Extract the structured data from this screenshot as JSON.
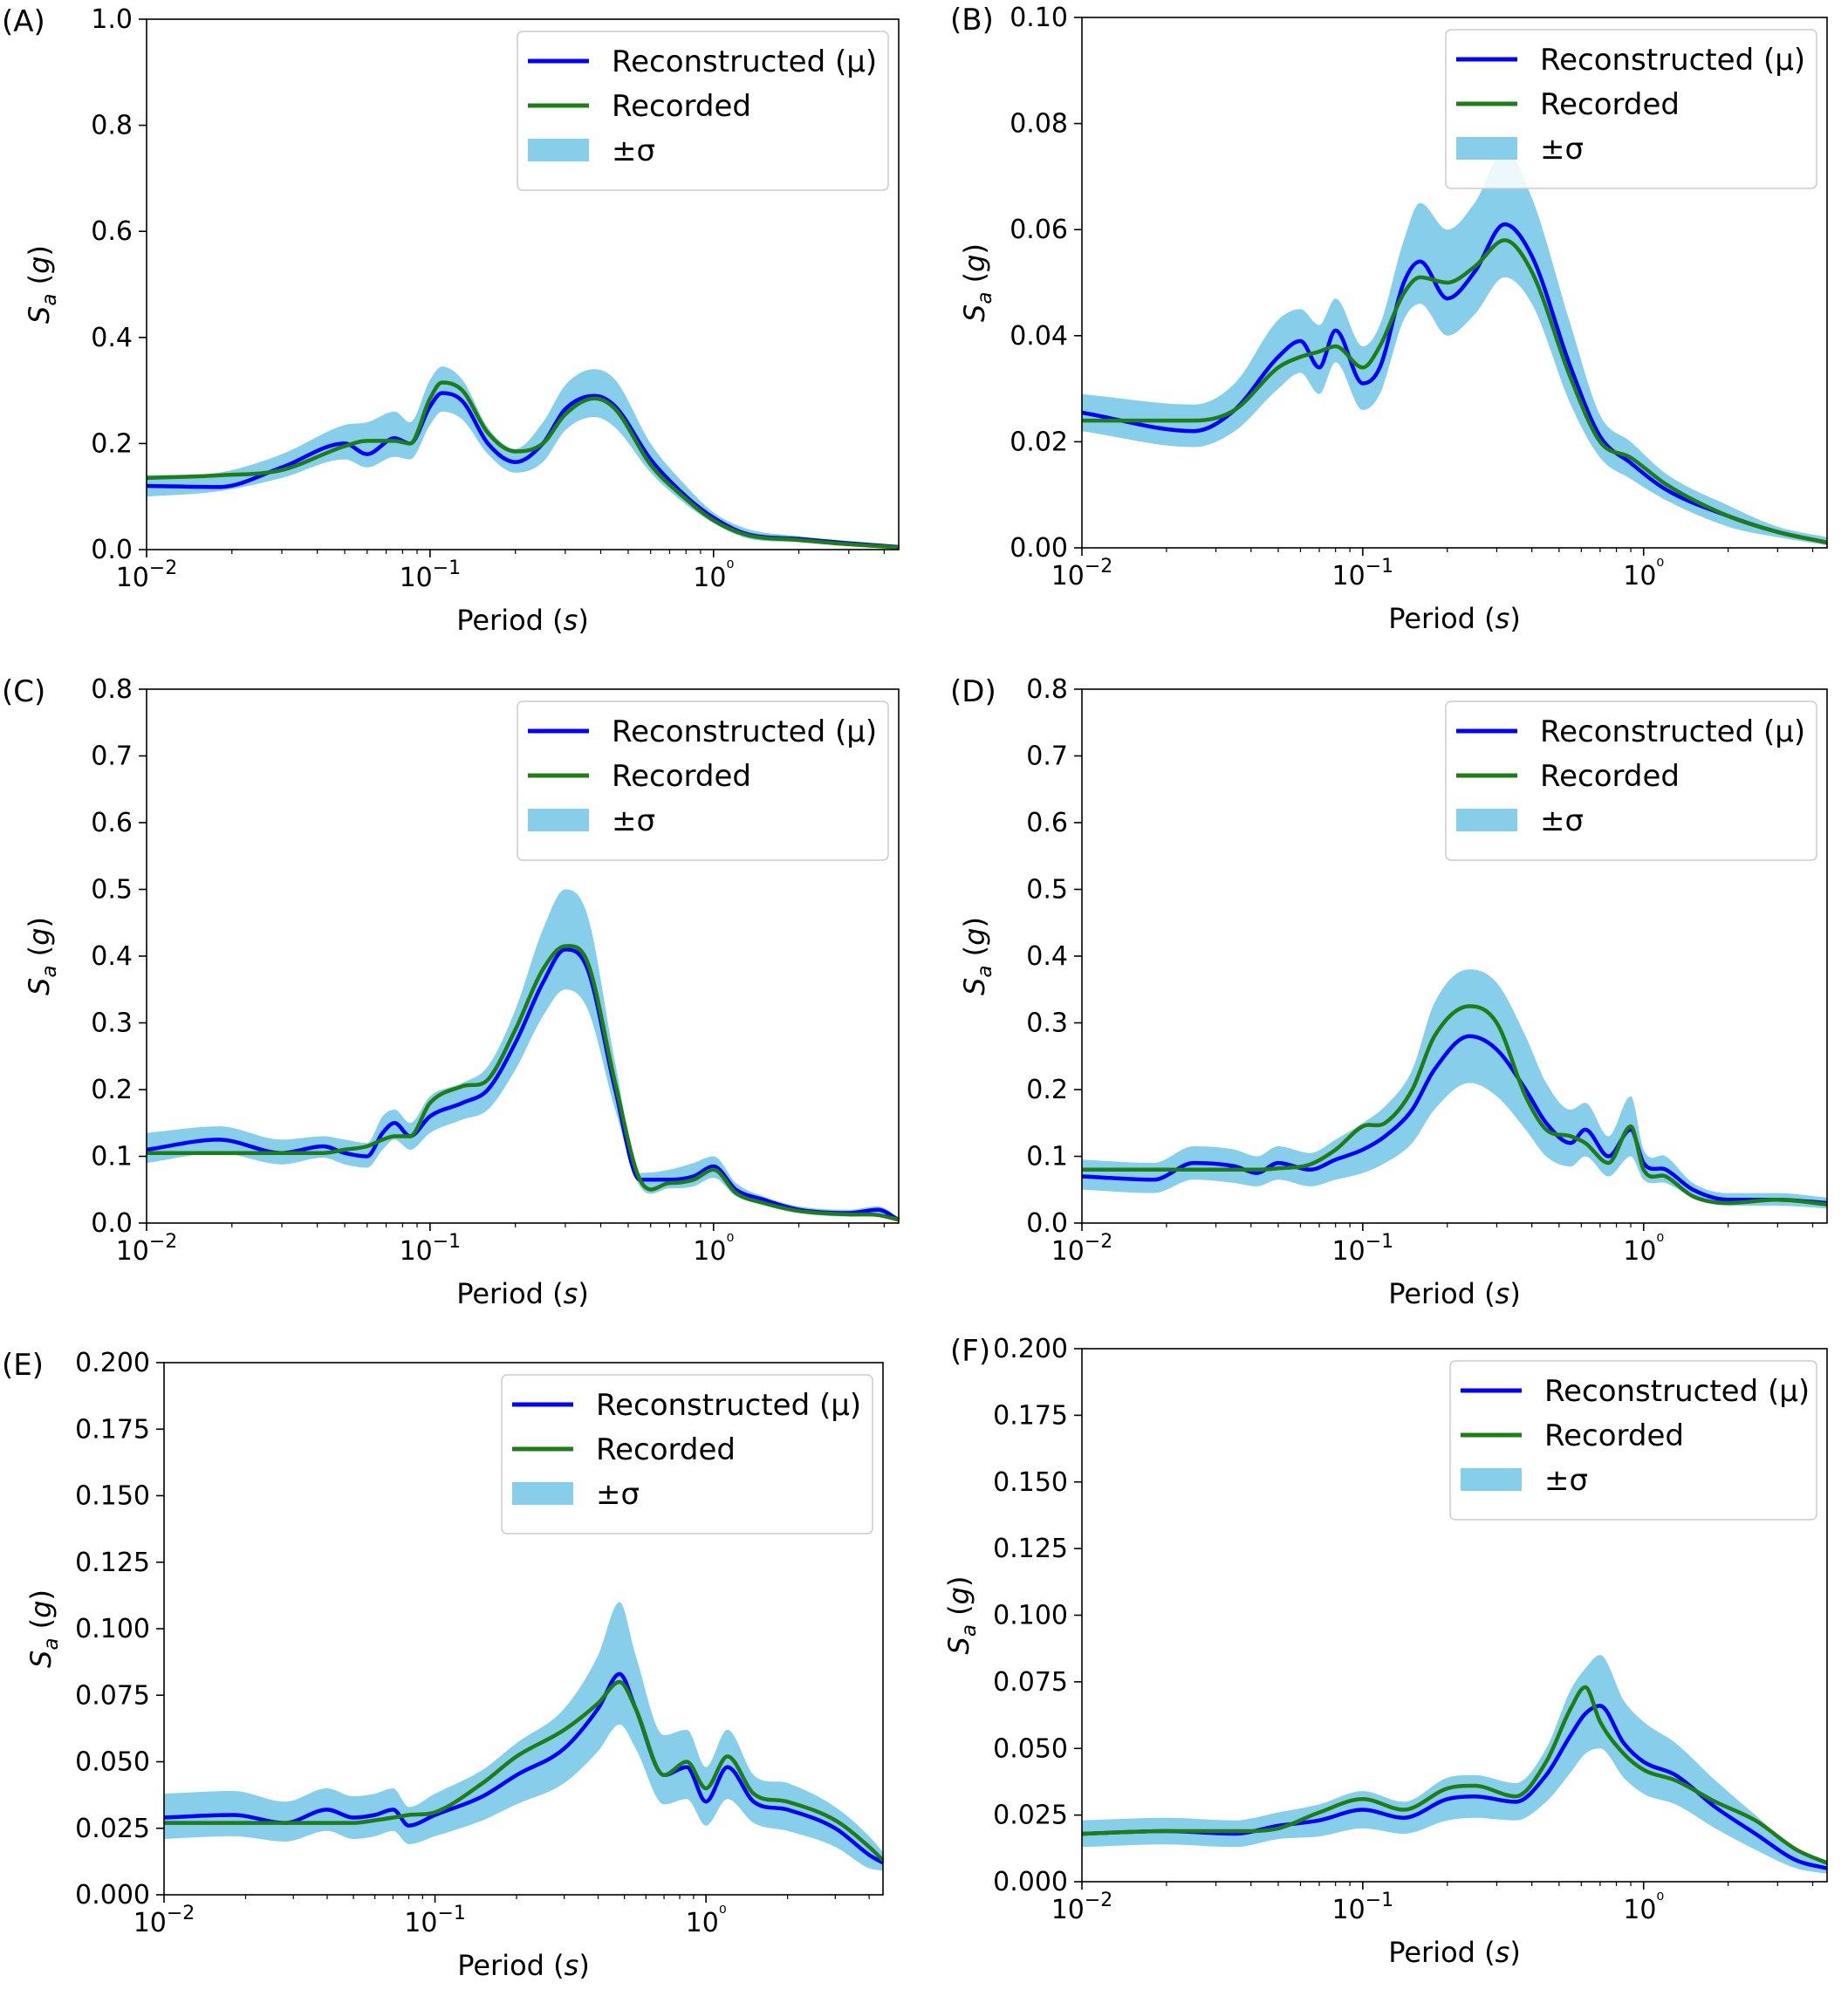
{
  "colors": {
    "reconstructed": "#0000ff",
    "recorded": "#1e7d14",
    "band": "#87ceeb"
  },
  "chart_data": [
    {
      "type": "line",
      "panel_label": "(A)",
      "xlabel": "Period",
      "xlabel_unit": "s",
      "ylabel": "S",
      "ylabel_sub": "a",
      "ylabel_unit": "g",
      "x_scale": "log",
      "xlim": [
        0.01,
        4.5
      ],
      "x_ticks": [
        {
          "value": 0.01,
          "label": "10−2"
        },
        {
          "value": 0.1,
          "label": "10−1"
        },
        {
          "value": 1,
          "label": "10⁰"
        }
      ],
      "ylim": [
        0,
        1.0
      ],
      "y_ticks": [
        "0.0",
        "0.2",
        "0.4",
        "0.6",
        "0.8",
        "1.0"
      ],
      "grid": false,
      "legend": {
        "placement": "top-right",
        "entries": [
          "Reconstructed (μ)",
          "Recorded",
          "±σ"
        ]
      },
      "x": [
        0.01,
        0.018,
        0.03,
        0.05,
        0.06,
        0.075,
        0.085,
        0.1,
        0.11,
        0.13,
        0.16,
        0.2,
        0.25,
        0.3,
        0.38,
        0.45,
        0.6,
        0.8,
        1.0,
        1.3,
        2.0,
        3.0,
        4.5
      ],
      "series": [
        {
          "name": "Reconstructed (μ)",
          "values": [
            0.12,
            0.118,
            0.155,
            0.2,
            0.18,
            0.21,
            0.2,
            0.27,
            0.295,
            0.28,
            0.2,
            0.165,
            0.2,
            0.265,
            0.29,
            0.27,
            0.17,
            0.1,
            0.06,
            0.03,
            0.02,
            0.012,
            0.005
          ]
        },
        {
          "name": "Recorded",
          "values": [
            0.135,
            0.14,
            0.15,
            0.195,
            0.205,
            0.205,
            0.2,
            0.285,
            0.315,
            0.3,
            0.22,
            0.185,
            0.2,
            0.255,
            0.285,
            0.265,
            0.16,
            0.095,
            0.055,
            0.028,
            0.018,
            0.01,
            0.004
          ]
        }
      ],
      "band": {
        "name": "±σ",
        "upper": [
          0.14,
          0.145,
          0.18,
          0.235,
          0.24,
          0.26,
          0.24,
          0.32,
          0.345,
          0.32,
          0.23,
          0.19,
          0.24,
          0.31,
          0.34,
          0.32,
          0.2,
          0.12,
          0.07,
          0.04,
          0.025,
          0.016,
          0.008
        ],
        "lower": [
          0.1,
          0.11,
          0.135,
          0.17,
          0.155,
          0.175,
          0.17,
          0.235,
          0.26,
          0.245,
          0.18,
          0.145,
          0.165,
          0.225,
          0.25,
          0.23,
          0.145,
          0.085,
          0.05,
          0.022,
          0.014,
          0.008,
          0.002
        ]
      }
    },
    {
      "type": "line",
      "panel_label": "(B)",
      "xlabel": "Period",
      "xlabel_unit": "s",
      "ylabel": "S",
      "ylabel_sub": "a",
      "ylabel_unit": "g",
      "x_scale": "log",
      "xlim": [
        0.01,
        4.5
      ],
      "x_ticks": [
        {
          "value": 0.01,
          "label": "10−2"
        },
        {
          "value": 0.1,
          "label": "10−1"
        },
        {
          "value": 1,
          "label": "10⁰"
        }
      ],
      "ylim": [
        0,
        0.1
      ],
      "y_ticks": [
        "0.00",
        "0.02",
        "0.04",
        "0.06",
        "0.08",
        "0.10"
      ],
      "grid": false,
      "legend": {
        "placement": "top-right",
        "entries": [
          "Reconstructed (μ)",
          "Recorded",
          "±σ"
        ]
      },
      "x": [
        0.01,
        0.025,
        0.035,
        0.05,
        0.06,
        0.07,
        0.08,
        0.1,
        0.115,
        0.14,
        0.16,
        0.2,
        0.25,
        0.32,
        0.4,
        0.55,
        0.7,
        0.9,
        1.2,
        2.0,
        3.0,
        4.5
      ],
      "series": [
        {
          "name": "Reconstructed (μ)",
          "values": [
            0.0255,
            0.022,
            0.026,
            0.036,
            0.039,
            0.034,
            0.041,
            0.031,
            0.034,
            0.05,
            0.054,
            0.047,
            0.052,
            0.061,
            0.055,
            0.034,
            0.021,
            0.016,
            0.011,
            0.006,
            0.003,
            0.001
          ]
        },
        {
          "name": "Recorded",
          "values": [
            0.024,
            0.024,
            0.026,
            0.034,
            0.036,
            0.037,
            0.038,
            0.034,
            0.038,
            0.048,
            0.051,
            0.05,
            0.053,
            0.058,
            0.052,
            0.032,
            0.02,
            0.017,
            0.012,
            0.006,
            0.003,
            0.001
          ]
        }
      ],
      "band": {
        "name": "±σ",
        "upper": [
          0.029,
          0.027,
          0.031,
          0.043,
          0.045,
          0.042,
          0.047,
          0.038,
          0.042,
          0.058,
          0.065,
          0.06,
          0.065,
          0.075,
          0.066,
          0.042,
          0.025,
          0.02,
          0.014,
          0.008,
          0.004,
          0.002
        ]
      },
      "band_lower": [
        0.022,
        0.019,
        0.022,
        0.03,
        0.033,
        0.029,
        0.035,
        0.026,
        0.029,
        0.043,
        0.046,
        0.04,
        0.044,
        0.051,
        0.046,
        0.027,
        0.017,
        0.013,
        0.009,
        0.004,
        0.002,
        0.0005
      ]
    },
    {
      "type": "line",
      "panel_label": "(C)",
      "xlabel": "Period",
      "xlabel_unit": "s",
      "ylabel": "S",
      "ylabel_sub": "a",
      "ylabel_unit": "g",
      "x_scale": "log",
      "xlim": [
        0.01,
        4.5
      ],
      "x_ticks": [
        {
          "value": 0.01,
          "label": "10−2"
        },
        {
          "value": 0.1,
          "label": "10−1"
        },
        {
          "value": 1,
          "label": "10⁰"
        }
      ],
      "ylim": [
        0,
        0.8
      ],
      "y_ticks": [
        "0.0",
        "0.1",
        "0.2",
        "0.3",
        "0.4",
        "0.5",
        "0.6",
        "0.7",
        "0.8"
      ],
      "grid": false,
      "legend": {
        "placement": "top-right",
        "entries": [
          "Reconstructed (μ)",
          "Recorded",
          "±σ"
        ]
      },
      "x": [
        0.01,
        0.018,
        0.03,
        0.042,
        0.05,
        0.06,
        0.068,
        0.075,
        0.085,
        0.1,
        0.13,
        0.16,
        0.2,
        0.25,
        0.3,
        0.36,
        0.45,
        0.55,
        0.7,
        0.85,
        1.0,
        1.2,
        1.5,
        2.0,
        3.0,
        3.8,
        4.5
      ],
      "series": [
        {
          "name": "Reconstructed (μ)",
          "values": [
            0.11,
            0.125,
            0.105,
            0.115,
            0.105,
            0.1,
            0.135,
            0.15,
            0.13,
            0.16,
            0.18,
            0.2,
            0.27,
            0.36,
            0.41,
            0.38,
            0.2,
            0.065,
            0.065,
            0.07,
            0.085,
            0.05,
            0.035,
            0.02,
            0.015,
            0.02,
            0.005
          ]
        },
        {
          "name": "Recorded",
          "values": [
            0.105,
            0.105,
            0.105,
            0.105,
            0.11,
            0.115,
            0.125,
            0.13,
            0.13,
            0.18,
            0.205,
            0.215,
            0.29,
            0.38,
            0.415,
            0.39,
            0.21,
            0.065,
            0.06,
            0.065,
            0.08,
            0.045,
            0.03,
            0.018,
            0.013,
            0.012,
            0.005
          ]
        }
      ],
      "band": {
        "name": "±σ",
        "upper": [
          0.135,
          0.145,
          0.125,
          0.13,
          0.125,
          0.12,
          0.16,
          0.17,
          0.15,
          0.19,
          0.21,
          0.235,
          0.32,
          0.44,
          0.5,
          0.46,
          0.24,
          0.075,
          0.08,
          0.09,
          0.1,
          0.06,
          0.04,
          0.025,
          0.02,
          0.025,
          0.008
        ]
      },
      "band_lower": [
        0.09,
        0.105,
        0.088,
        0.098,
        0.088,
        0.083,
        0.11,
        0.125,
        0.11,
        0.135,
        0.155,
        0.17,
        0.23,
        0.31,
        0.35,
        0.32,
        0.17,
        0.055,
        0.052,
        0.055,
        0.068,
        0.04,
        0.028,
        0.015,
        0.01,
        0.014,
        0.002
      ]
    },
    {
      "type": "line",
      "panel_label": "(D)",
      "xlabel": "Period",
      "xlabel_unit": "s",
      "ylabel": "S",
      "ylabel_sub": "a",
      "ylabel_unit": "g",
      "x_scale": "log",
      "xlim": [
        0.01,
        4.5
      ],
      "x_ticks": [
        {
          "value": 0.01,
          "label": "10−2"
        },
        {
          "value": 0.1,
          "label": "10−1"
        },
        {
          "value": 1,
          "label": "10⁰"
        }
      ],
      "ylim": [
        0,
        0.8
      ],
      "y_ticks": [
        "0.0",
        "0.1",
        "0.2",
        "0.3",
        "0.4",
        "0.5",
        "0.6",
        "0.7",
        "0.8"
      ],
      "grid": false,
      "legend": {
        "placement": "top-right",
        "entries": [
          "Reconstructed (μ)",
          "Recorded",
          "±σ"
        ]
      },
      "x": [
        0.01,
        0.018,
        0.025,
        0.035,
        0.042,
        0.05,
        0.065,
        0.08,
        0.1,
        0.12,
        0.15,
        0.18,
        0.24,
        0.3,
        0.38,
        0.45,
        0.55,
        0.62,
        0.75,
        0.9,
        1.0,
        1.2,
        1.5,
        2.0,
        3.0,
        4.5
      ],
      "series": [
        {
          "name": "Reconstructed (μ)",
          "values": [
            0.07,
            0.065,
            0.09,
            0.085,
            0.075,
            0.09,
            0.08,
            0.095,
            0.11,
            0.13,
            0.17,
            0.23,
            0.28,
            0.26,
            0.2,
            0.15,
            0.12,
            0.14,
            0.1,
            0.14,
            0.09,
            0.08,
            0.05,
            0.035,
            0.035,
            0.03
          ]
        },
        {
          "name": "Recorded",
          "values": [
            0.08,
            0.08,
            0.08,
            0.08,
            0.08,
            0.082,
            0.088,
            0.11,
            0.145,
            0.15,
            0.2,
            0.28,
            0.325,
            0.3,
            0.19,
            0.14,
            0.13,
            0.12,
            0.09,
            0.145,
            0.08,
            0.07,
            0.04,
            0.03,
            0.035,
            0.028
          ]
        }
      ],
      "band": {
        "name": "±σ",
        "upper": [
          0.095,
          0.09,
          0.115,
          0.11,
          0.1,
          0.115,
          0.105,
          0.125,
          0.15,
          0.175,
          0.23,
          0.33,
          0.38,
          0.36,
          0.28,
          0.21,
          0.17,
          0.18,
          0.13,
          0.19,
          0.11,
          0.1,
          0.06,
          0.045,
          0.045,
          0.038
        ]
      },
      "band_lower": [
        0.05,
        0.045,
        0.065,
        0.06,
        0.055,
        0.065,
        0.055,
        0.065,
        0.075,
        0.09,
        0.12,
        0.17,
        0.21,
        0.19,
        0.14,
        0.1,
        0.085,
        0.1,
        0.07,
        0.1,
        0.065,
        0.06,
        0.038,
        0.026,
        0.026,
        0.022
      ]
    },
    {
      "type": "line",
      "panel_label": "(E)",
      "xlabel": "Period",
      "xlabel_unit": "s",
      "ylabel": "S",
      "ylabel_sub": "a",
      "ylabel_unit": "g",
      "x_scale": "log",
      "xlim": [
        0.01,
        4.5
      ],
      "x_ticks": [
        {
          "value": 0.01,
          "label": "10−2"
        },
        {
          "value": 0.1,
          "label": "10−1"
        },
        {
          "value": 1,
          "label": "10⁰"
        }
      ],
      "ylim": [
        0,
        0.2
      ],
      "y_ticks": [
        "0.000",
        "0.025",
        "0.050",
        "0.075",
        "0.100",
        "0.125",
        "0.150",
        "0.175",
        "0.200"
      ],
      "grid": false,
      "legend": {
        "placement": "top-right",
        "entries": [
          "Reconstructed (μ)",
          "Recorded",
          "±σ"
        ]
      },
      "x": [
        0.01,
        0.018,
        0.028,
        0.04,
        0.05,
        0.06,
        0.07,
        0.08,
        0.1,
        0.15,
        0.2,
        0.3,
        0.4,
        0.48,
        0.55,
        0.7,
        0.85,
        1.0,
        1.2,
        1.5,
        2.0,
        3.0,
        4.0,
        4.5
      ],
      "series": [
        {
          "name": "Reconstructed (μ)",
          "values": [
            0.029,
            0.03,
            0.027,
            0.032,
            0.029,
            0.03,
            0.032,
            0.026,
            0.03,
            0.037,
            0.045,
            0.055,
            0.07,
            0.083,
            0.07,
            0.045,
            0.048,
            0.035,
            0.048,
            0.035,
            0.032,
            0.025,
            0.015,
            0.012
          ]
        },
        {
          "name": "Recorded",
          "values": [
            0.027,
            0.027,
            0.027,
            0.027,
            0.027,
            0.028,
            0.029,
            0.03,
            0.031,
            0.042,
            0.052,
            0.062,
            0.072,
            0.08,
            0.07,
            0.045,
            0.05,
            0.04,
            0.052,
            0.038,
            0.035,
            0.028,
            0.018,
            0.013
          ]
        }
      ],
      "band": {
        "name": "±σ",
        "upper": [
          0.038,
          0.039,
          0.035,
          0.04,
          0.037,
          0.038,
          0.04,
          0.033,
          0.038,
          0.047,
          0.057,
          0.07,
          0.09,
          0.11,
          0.09,
          0.06,
          0.062,
          0.048,
          0.062,
          0.045,
          0.042,
          0.033,
          0.022,
          0.016
        ]
      },
      "band_lower": [
        0.021,
        0.022,
        0.02,
        0.024,
        0.021,
        0.022,
        0.024,
        0.019,
        0.022,
        0.028,
        0.034,
        0.042,
        0.054,
        0.064,
        0.055,
        0.034,
        0.036,
        0.026,
        0.036,
        0.027,
        0.024,
        0.018,
        0.01,
        0.009
      ]
    },
    {
      "type": "line",
      "panel_label": "(F)",
      "xlabel": "Period",
      "xlabel_unit": "s",
      "ylabel": "S",
      "ylabel_sub": "a",
      "ylabel_unit": "g",
      "x_scale": "log",
      "xlim": [
        0.01,
        4.5
      ],
      "x_ticks": [
        {
          "value": 0.01,
          "label": "10−2"
        },
        {
          "value": 0.1,
          "label": "10−1"
        },
        {
          "value": 1,
          "label": "10⁰"
        }
      ],
      "ylim": [
        0,
        0.2
      ],
      "y_ticks": [
        "0.000",
        "0.025",
        "0.050",
        "0.075",
        "0.100",
        "0.125",
        "0.150",
        "0.175",
        "0.200"
      ],
      "grid": false,
      "legend": {
        "placement": "top-right",
        "entries": [
          "Reconstructed (μ)",
          "Recorded",
          "±σ"
        ]
      },
      "x": [
        0.01,
        0.02,
        0.035,
        0.05,
        0.07,
        0.1,
        0.14,
        0.2,
        0.25,
        0.35,
        0.45,
        0.55,
        0.62,
        0.7,
        0.85,
        1.0,
        1.3,
        1.8,
        2.5,
        3.5,
        4.5
      ],
      "series": [
        {
          "name": "Reconstructed (μ)",
          "values": [
            0.018,
            0.019,
            0.018,
            0.021,
            0.023,
            0.027,
            0.024,
            0.031,
            0.032,
            0.03,
            0.04,
            0.055,
            0.063,
            0.066,
            0.052,
            0.045,
            0.04,
            0.028,
            0.018,
            0.008,
            0.005
          ]
        },
        {
          "name": "Recorded",
          "values": [
            0.018,
            0.019,
            0.019,
            0.02,
            0.026,
            0.031,
            0.027,
            0.035,
            0.036,
            0.032,
            0.045,
            0.065,
            0.073,
            0.06,
            0.048,
            0.042,
            0.038,
            0.03,
            0.023,
            0.012,
            0.007
          ]
        }
      ],
      "band": {
        "name": "±σ",
        "upper": [
          0.023,
          0.024,
          0.023,
          0.026,
          0.029,
          0.034,
          0.03,
          0.039,
          0.04,
          0.037,
          0.05,
          0.072,
          0.08,
          0.085,
          0.068,
          0.06,
          0.052,
          0.038,
          0.025,
          0.012,
          0.008
        ]
      },
      "band_lower": [
        0.013,
        0.014,
        0.013,
        0.016,
        0.017,
        0.02,
        0.018,
        0.023,
        0.024,
        0.023,
        0.03,
        0.041,
        0.048,
        0.05,
        0.039,
        0.033,
        0.029,
        0.02,
        0.012,
        0.005,
        0.003
      ]
    }
  ]
}
